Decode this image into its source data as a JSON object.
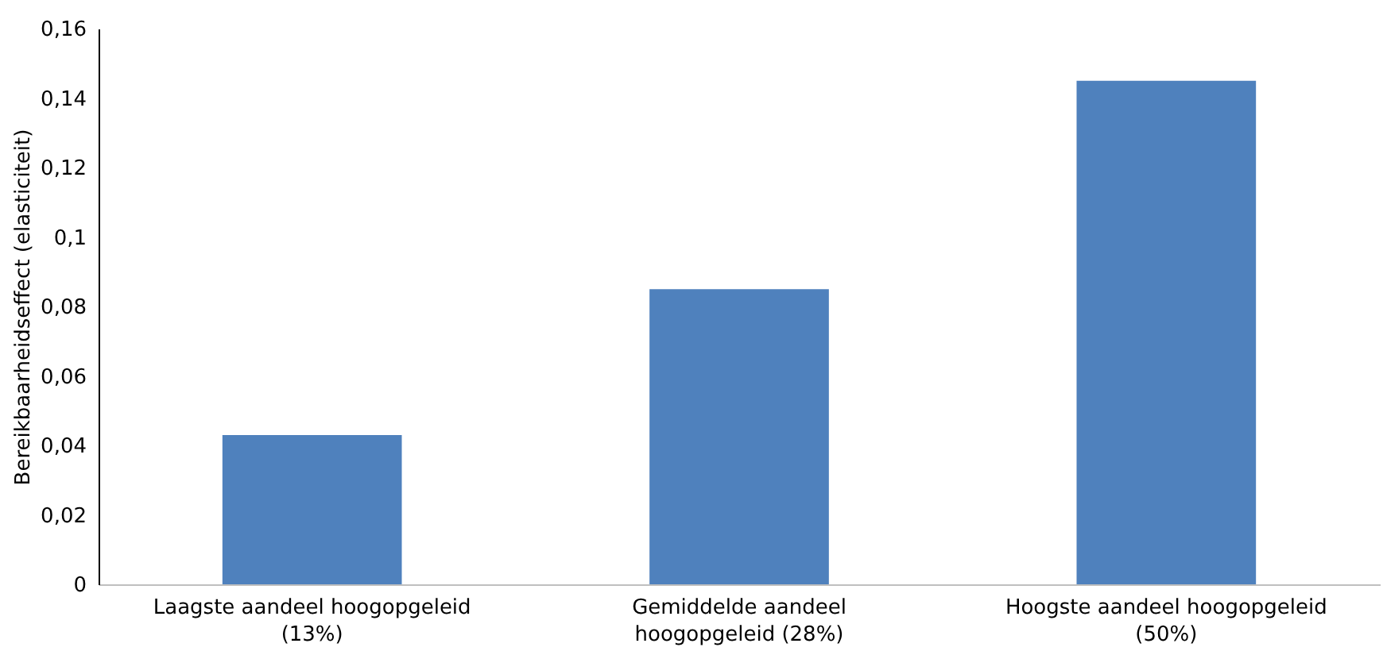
{
  "chart_data": {
    "type": "bar",
    "ylabel": "Bereikbaarheidseffect (elasticiteit)",
    "categories": [
      "Laagste aandeel hoogopgeleid (13%)",
      "Gemiddelde aandeel hoogopgeleid (28%)",
      "Hoogste aandeel hoogopgeleid (50%)"
    ],
    "values": [
      0.043,
      0.085,
      0.145
    ],
    "color": "#4f81bd",
    "ylim": [
      0,
      0.16
    ],
    "yticks": [
      {
        "value": 0,
        "label": "0"
      },
      {
        "value": 0.02,
        "label": "0,02"
      },
      {
        "value": 0.04,
        "label": "0,04"
      },
      {
        "value": 0.06,
        "label": "0,06"
      },
      {
        "value": 0.08,
        "label": "0,08"
      },
      {
        "value": 0.1,
        "label": "0,1"
      },
      {
        "value": 0.12,
        "label": "0,12"
      },
      {
        "value": 0.14,
        "label": "0,14"
      },
      {
        "value": 0.16,
        "label": "0,16"
      }
    ],
    "grid": false
  }
}
